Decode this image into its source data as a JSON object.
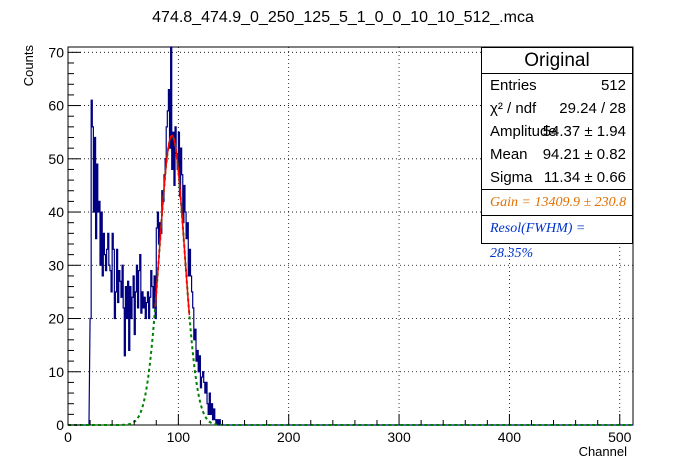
{
  "chart_data": {
    "type": "histogram",
    "title": "474.8_474.9_0_250_125_5_1_0_0_10_10_512_.mca",
    "xlabel": "Channel",
    "ylabel": "Counts",
    "xlim": [
      0,
      512
    ],
    "ylim": [
      0,
      71
    ],
    "xticks": [
      "0",
      "100",
      "200",
      "300",
      "400",
      "500"
    ],
    "yticks": [
      "0",
      "10",
      "20",
      "30",
      "40",
      "50",
      "60",
      "70"
    ],
    "grid": true,
    "histogram": {
      "name": "Original",
      "bins": [
        [
          18,
          0
        ],
        [
          20,
          20
        ],
        [
          21,
          61
        ],
        [
          22,
          56
        ],
        [
          23,
          40
        ],
        [
          24,
          54
        ],
        [
          25,
          35
        ],
        [
          26,
          49
        ],
        [
          27,
          40
        ],
        [
          28,
          42
        ],
        [
          29,
          30
        ],
        [
          30,
          40
        ],
        [
          31,
          28
        ],
        [
          32,
          36
        ],
        [
          33,
          32
        ],
        [
          34,
          29
        ],
        [
          35,
          33
        ],
        [
          36,
          36
        ],
        [
          37,
          30
        ],
        [
          38,
          29
        ],
        [
          39,
          25
        ],
        [
          40,
          36
        ],
        [
          41,
          33
        ],
        [
          42,
          20
        ],
        [
          43,
          25
        ],
        [
          44,
          33
        ],
        [
          45,
          23
        ],
        [
          46,
          29
        ],
        [
          47,
          27
        ],
        [
          48,
          24
        ],
        [
          49,
          30
        ],
        [
          50,
          22
        ],
        [
          51,
          13
        ],
        [
          52,
          26
        ],
        [
          53,
          20
        ],
        [
          54,
          27
        ],
        [
          55,
          14
        ],
        [
          56,
          26
        ],
        [
          57,
          20
        ],
        [
          58,
          24
        ],
        [
          59,
          28
        ],
        [
          60,
          17
        ],
        [
          61,
          25
        ],
        [
          62,
          30
        ],
        [
          63,
          22
        ],
        [
          64,
          29
        ],
        [
          65,
          32
        ],
        [
          66,
          21
        ],
        [
          67,
          25
        ],
        [
          68,
          22
        ],
        [
          69,
          24
        ],
        [
          70,
          20
        ],
        [
          71,
          23
        ],
        [
          72,
          25
        ],
        [
          73,
          20
        ],
        [
          74,
          24
        ],
        [
          75,
          29
        ],
        [
          76,
          26
        ],
        [
          77,
          22
        ],
        [
          78,
          28
        ],
        [
          79,
          20
        ],
        [
          80,
          37
        ],
        [
          81,
          40
        ],
        [
          82,
          34
        ],
        [
          83,
          38
        ],
        [
          84,
          36
        ],
        [
          85,
          44
        ],
        [
          86,
          42
        ],
        [
          87,
          47
        ],
        [
          88,
          50
        ],
        [
          89,
          56
        ],
        [
          90,
          59
        ],
        [
          91,
          63
        ],
        [
          92,
          52
        ],
        [
          93,
          75
        ],
        [
          94,
          48
        ],
        [
          95,
          55
        ],
        [
          96,
          45
        ],
        [
          97,
          56
        ],
        [
          98,
          51
        ],
        [
          99,
          48
        ],
        [
          100,
          55
        ],
        [
          101,
          43
        ],
        [
          102,
          52
        ],
        [
          103,
          47
        ],
        [
          104,
          38
        ],
        [
          105,
          45
        ],
        [
          106,
          40
        ],
        [
          107,
          35
        ],
        [
          108,
          38
        ],
        [
          109,
          28
        ],
        [
          110,
          33
        ],
        [
          111,
          28
        ],
        [
          112,
          25
        ],
        [
          113,
          22
        ],
        [
          114,
          16
        ],
        [
          115,
          18
        ],
        [
          116,
          12
        ],
        [
          117,
          14
        ],
        [
          118,
          10
        ],
        [
          119,
          13
        ],
        [
          120,
          7
        ],
        [
          121,
          9
        ],
        [
          122,
          10
        ],
        [
          123,
          8
        ],
        [
          124,
          6
        ],
        [
          125,
          8
        ],
        [
          126,
          4
        ],
        [
          127,
          2
        ],
        [
          128,
          6
        ],
        [
          129,
          2
        ],
        [
          130,
          4
        ],
        [
          131,
          1
        ],
        [
          132,
          3
        ],
        [
          133,
          1
        ],
        [
          134,
          0
        ],
        [
          135,
          1
        ],
        [
          136,
          0
        ],
        [
          137,
          1
        ],
        [
          138,
          0
        ]
      ],
      "color": "#000080"
    },
    "fit": {
      "function": "gaussian",
      "amplitude": 54.37,
      "mean": 94.21,
      "sigma": 11.34,
      "fit_range": [
        79,
        110
      ],
      "fit_color": "#ff0000",
      "extended_color": "#008000"
    },
    "stats": {
      "title": "Original",
      "rows": [
        {
          "label": "Entries",
          "value": "512"
        },
        {
          "label": "χ² / ndf",
          "value": "29.24 / 28"
        },
        {
          "label": "Amplitude",
          "value": "54.37 ± 1.94"
        },
        {
          "label": "Mean",
          "value": "94.21 ± 0.82"
        },
        {
          "label": "Sigma",
          "value": "11.34 ± 0.66"
        }
      ],
      "gain_text": "Gain = 13409.9 ± 230.8",
      "gain_color": "#e07000",
      "resol_text": "Resol(FWHM) = 28.35%",
      "resol_color": "#0033cc"
    }
  }
}
